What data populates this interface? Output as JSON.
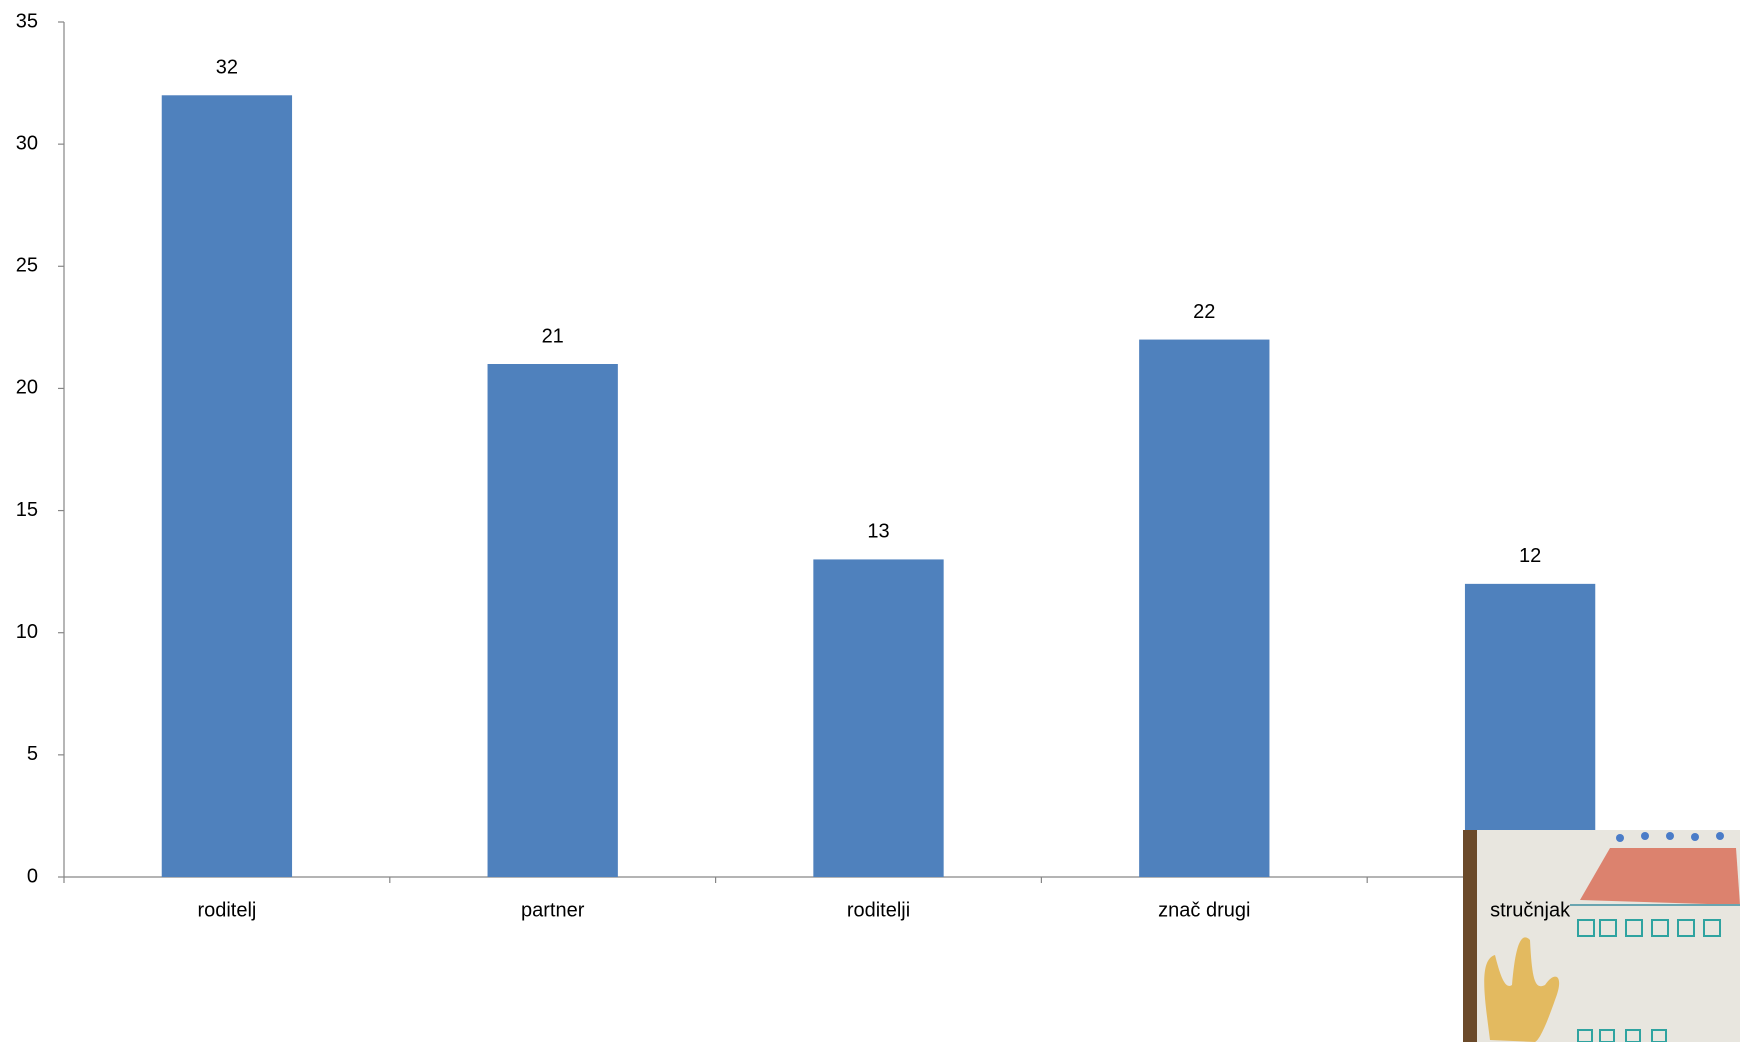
{
  "chart_data": {
    "type": "bar",
    "categories": [
      "roditelj",
      "partner",
      "roditelji",
      "znač drugi",
      "stručnjak"
    ],
    "values": [
      32,
      21,
      13,
      22,
      12
    ],
    "color": "#4f81bd",
    "ylim": [
      0,
      35
    ],
    "yticks": [
      0,
      5,
      10,
      15,
      20,
      25,
      30,
      35
    ],
    "grid": false
  }
}
